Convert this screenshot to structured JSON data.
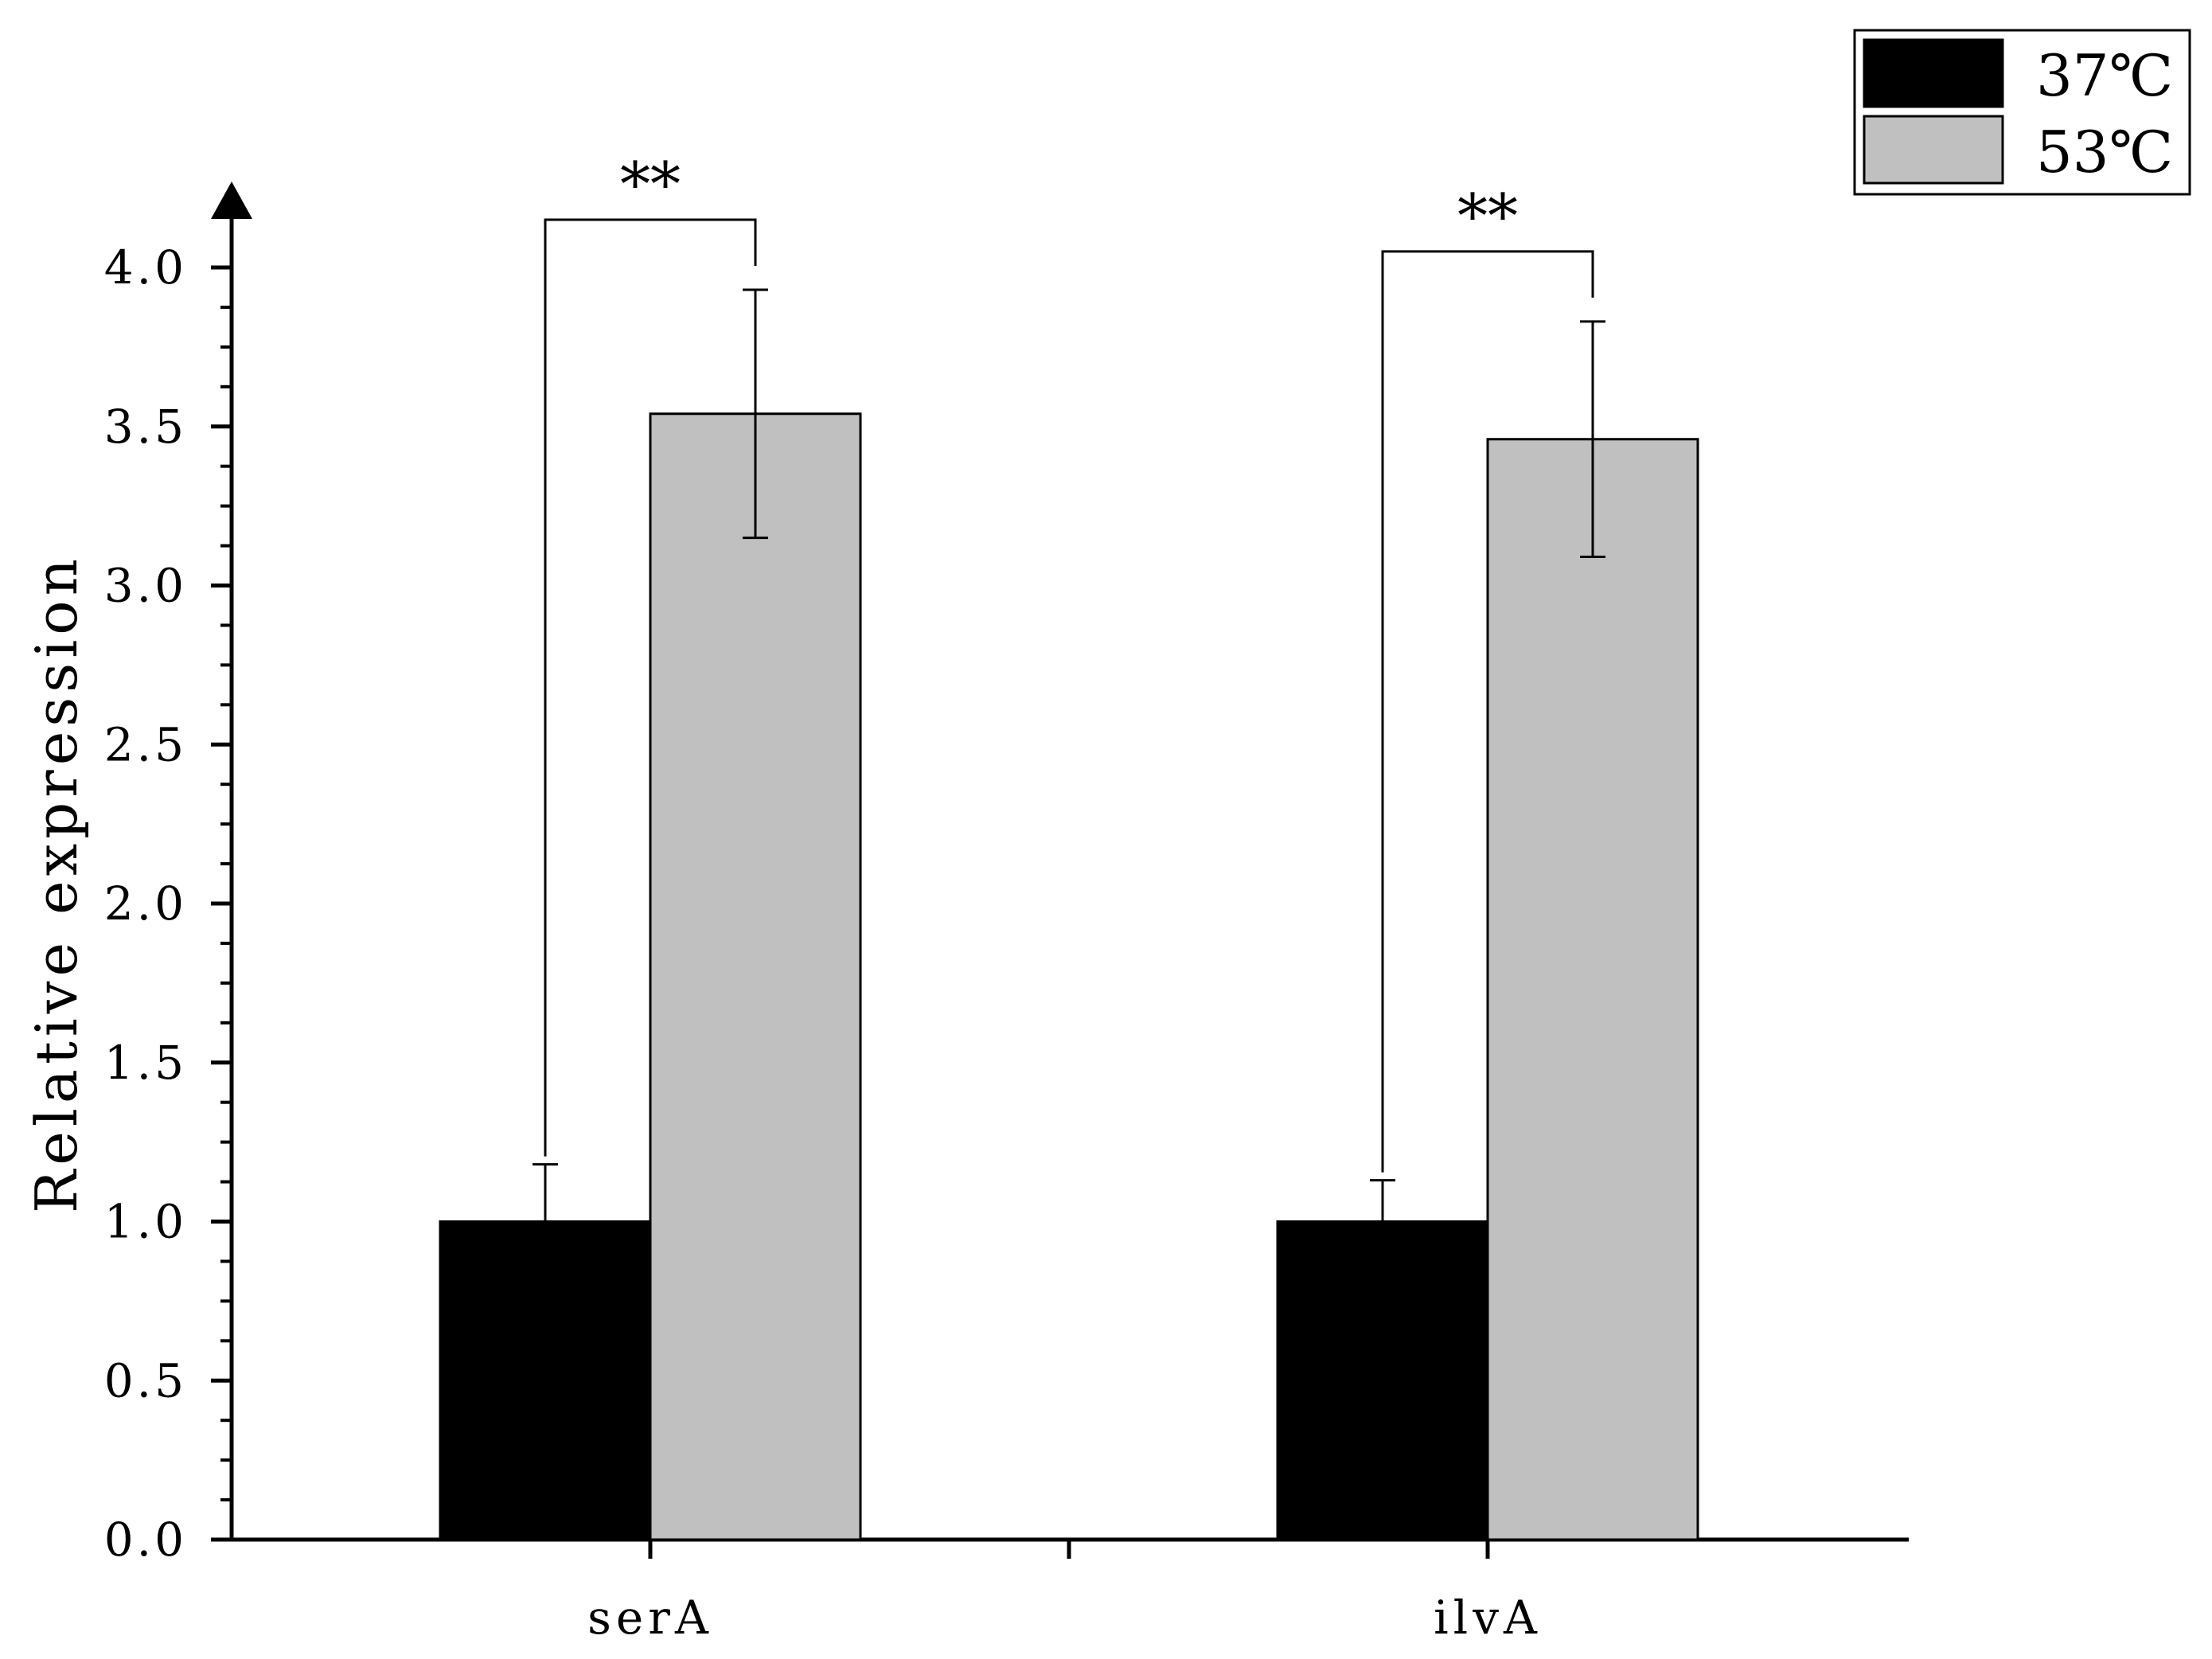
{
  "chart_data": {
    "type": "bar",
    "title": "",
    "xlabel": "",
    "ylabel": "Relative expression",
    "ylim": [
      0,
      4.0
    ],
    "y_ticks": [
      "0.0",
      "0.5",
      "1.0",
      "1.5",
      "2.0",
      "2.5",
      "3.0",
      "3.5",
      "4.0"
    ],
    "y_tick_values": [
      0,
      0.5,
      1.0,
      1.5,
      2.0,
      2.5,
      3.0,
      3.5,
      4.0
    ],
    "categories": [
      "serA",
      "ilvA"
    ],
    "series": [
      {
        "name": "37℃",
        "color": "#000000",
        "values": [
          1.0,
          1.0
        ],
        "errors": [
          0.18,
          0.13
        ]
      },
      {
        "name": "53℃",
        "color": "#c0c0c0",
        "values": [
          3.54,
          3.46
        ],
        "errors": [
          0.39,
          0.37
        ]
      }
    ],
    "annotations": [
      "**",
      "**"
    ],
    "legend_position": "top-right",
    "grid": false
  }
}
